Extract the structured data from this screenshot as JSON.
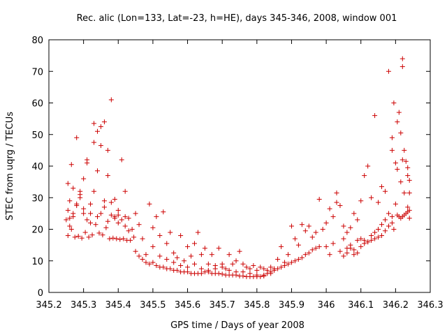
{
  "chart_data": {
    "type": "scatter",
    "title": "Rec. alic (Lon=133, Lat=-23, h=HE), days 345-346, 2008, window 001",
    "xlabel": "GPS time / Days of year 2008",
    "ylabel": "STEC from uqrg / TECUs",
    "xlim": [
      345.2,
      346.3
    ],
    "ylim": [
      0,
      80
    ],
    "xticks": [
      345.2,
      345.3,
      345.4,
      345.5,
      345.6,
      345.7,
      345.8,
      345.9,
      346.0,
      346.1,
      346.2,
      346.3
    ],
    "xtick_labels": [
      "345.2",
      "345.3",
      "345.4",
      "345.5",
      "345.6",
      "345.7",
      "345.8",
      "345.9",
      "346",
      "346.1",
      "346.2",
      "346.3"
    ],
    "yticks": [
      0,
      10,
      20,
      30,
      40,
      50,
      60,
      70,
      80
    ],
    "ytick_labels": [
      "0",
      "10",
      "20",
      "30",
      "40",
      "50",
      "60",
      "70",
      "80"
    ],
    "grid": false,
    "marker": "+",
    "color": "#cc0000",
    "points": [
      [
        345.255,
        34.5
      ],
      [
        345.26,
        29.0
      ],
      [
        345.265,
        40.5
      ],
      [
        345.27,
        25.0
      ],
      [
        345.28,
        49.0
      ],
      [
        345.29,
        32.0
      ],
      [
        345.3,
        36.0
      ],
      [
        345.31,
        42.0
      ],
      [
        345.32,
        28.0
      ],
      [
        345.33,
        53.5
      ],
      [
        345.34,
        38.5
      ],
      [
        345.35,
        46.5
      ],
      [
        345.36,
        54.0
      ],
      [
        345.37,
        45.0
      ],
      [
        345.38,
        61.0
      ],
      [
        345.39,
        29.5
      ],
      [
        345.4,
        26.0
      ],
      [
        345.41,
        42.0
      ],
      [
        345.42,
        32.0
      ],
      [
        345.43,
        23.5
      ],
      [
        345.255,
        26.0
      ],
      [
        345.26,
        23.5
      ],
      [
        345.27,
        33.0
      ],
      [
        345.28,
        27.5
      ],
      [
        345.29,
        31.0
      ],
      [
        345.3,
        26.5
      ],
      [
        345.31,
        41.0
      ],
      [
        345.32,
        25.0
      ],
      [
        345.33,
        47.5
      ],
      [
        345.34,
        51.0
      ],
      [
        345.35,
        52.5
      ],
      [
        345.36,
        29.0
      ],
      [
        345.37,
        37.0
      ],
      [
        345.38,
        28.5
      ],
      [
        345.39,
        24.0
      ],
      [
        345.4,
        24.5
      ],
      [
        345.41,
        23.0
      ],
      [
        345.42,
        21.0
      ],
      [
        345.43,
        19.5
      ],
      [
        345.25,
        23.0
      ],
      [
        345.26,
        21.0
      ],
      [
        345.27,
        24.0
      ],
      [
        345.28,
        28.0
      ],
      [
        345.29,
        30.0
      ],
      [
        345.3,
        25.0
      ],
      [
        345.31,
        23.0
      ],
      [
        345.32,
        22.0
      ],
      [
        345.33,
        32.0
      ],
      [
        345.34,
        24.0
      ],
      [
        345.35,
        25.0
      ],
      [
        345.36,
        27.0
      ],
      [
        345.37,
        22.5
      ],
      [
        345.38,
        24.5
      ],
      [
        345.39,
        23.5
      ],
      [
        345.4,
        22.0
      ],
      [
        345.42,
        24.0
      ],
      [
        345.44,
        20.0
      ],
      [
        345.46,
        21.5
      ],
      [
        345.255,
        18.0
      ],
      [
        345.265,
        20.0
      ],
      [
        345.275,
        17.5
      ],
      [
        345.285,
        17.8
      ],
      [
        345.295,
        17.2
      ],
      [
        345.305,
        19.0
      ],
      [
        345.315,
        17.5
      ],
      [
        345.325,
        18.2
      ],
      [
        345.335,
        21.5
      ],
      [
        345.345,
        18.8
      ],
      [
        345.355,
        18.2
      ],
      [
        345.365,
        20.5
      ],
      [
        345.375,
        17.0
      ],
      [
        345.385,
        17.2
      ],
      [
        345.395,
        17.0
      ],
      [
        345.405,
        16.8
      ],
      [
        345.415,
        17.0
      ],
      [
        345.425,
        16.5
      ],
      [
        345.435,
        16.5
      ],
      [
        345.445,
        17.5
      ],
      [
        345.45,
        13.0
      ],
      [
        345.46,
        11.5
      ],
      [
        345.47,
        10.5
      ],
      [
        345.48,
        9.5
      ],
      [
        345.49,
        9.0
      ],
      [
        345.5,
        9.5
      ],
      [
        345.51,
        8.5
      ],
      [
        345.52,
        8.0
      ],
      [
        345.53,
        8.0
      ],
      [
        345.54,
        7.5
      ],
      [
        345.55,
        7.5
      ],
      [
        345.56,
        7.0
      ],
      [
        345.57,
        7.0
      ],
      [
        345.58,
        6.5
      ],
      [
        345.59,
        6.5
      ],
      [
        345.6,
        6.5
      ],
      [
        345.61,
        6.0
      ],
      [
        345.62,
        6.0
      ],
      [
        345.63,
        6.0
      ],
      [
        345.64,
        6.0
      ],
      [
        345.45,
        25.0
      ],
      [
        345.47,
        17.0
      ],
      [
        345.49,
        28.0
      ],
      [
        345.5,
        14.5
      ],
      [
        345.51,
        24.0
      ],
      [
        345.52,
        18.0
      ],
      [
        345.53,
        25.5
      ],
      [
        345.54,
        15.5
      ],
      [
        345.55,
        19.0
      ],
      [
        345.56,
        12.5
      ],
      [
        345.57,
        11.0
      ],
      [
        345.58,
        18.0
      ],
      [
        345.59,
        10.0
      ],
      [
        345.6,
        14.5
      ],
      [
        345.61,
        11.5
      ],
      [
        345.62,
        15.5
      ],
      [
        345.63,
        19.0
      ],
      [
        345.64,
        12.0
      ],
      [
        345.65,
        14.0
      ],
      [
        345.66,
        9.0
      ],
      [
        345.48,
        12.0
      ],
      [
        345.5,
        20.5
      ],
      [
        345.52,
        11.5
      ],
      [
        345.54,
        10.5
      ],
      [
        345.56,
        9.5
      ],
      [
        345.58,
        8.5
      ],
      [
        345.6,
        8.0
      ],
      [
        345.62,
        9.0
      ],
      [
        345.64,
        7.5
      ],
      [
        345.66,
        7.0
      ],
      [
        345.68,
        7.5
      ],
      [
        345.7,
        8.0
      ],
      [
        345.72,
        7.0
      ],
      [
        345.74,
        6.5
      ],
      [
        345.76,
        6.5
      ],
      [
        345.78,
        6.0
      ],
      [
        345.8,
        5.5
      ],
      [
        345.82,
        5.5
      ],
      [
        345.84,
        6.0
      ],
      [
        345.65,
        6.5
      ],
      [
        345.66,
        6.5
      ],
      [
        345.67,
        6.0
      ],
      [
        345.68,
        6.0
      ],
      [
        345.69,
        6.0
      ],
      [
        345.7,
        5.8
      ],
      [
        345.71,
        5.5
      ],
      [
        345.72,
        5.5
      ],
      [
        345.73,
        5.5
      ],
      [
        345.74,
        5.5
      ],
      [
        345.75,
        5.2
      ],
      [
        345.76,
        5.2
      ],
      [
        345.77,
        5.0
      ],
      [
        345.78,
        5.0
      ],
      [
        345.79,
        5.0
      ],
      [
        345.8,
        5.0
      ],
      [
        345.81,
        5.0
      ],
      [
        345.82,
        5.2
      ],
      [
        345.67,
        12.0
      ],
      [
        345.68,
        8.5
      ],
      [
        345.69,
        14.0
      ],
      [
        345.7,
        9.0
      ],
      [
        345.71,
        7.5
      ],
      [
        345.72,
        12.0
      ],
      [
        345.73,
        9.0
      ],
      [
        345.74,
        10.0
      ],
      [
        345.75,
        13.0
      ],
      [
        345.76,
        9.0
      ],
      [
        345.77,
        8.0
      ],
      [
        345.78,
        7.5
      ],
      [
        345.79,
        8.5
      ],
      [
        345.8,
        7.0
      ],
      [
        345.81,
        8.0
      ],
      [
        345.82,
        7.5
      ],
      [
        345.83,
        7.0
      ],
      [
        345.84,
        8.0
      ],
      [
        345.85,
        7.5
      ],
      [
        345.83,
        6.0
      ],
      [
        345.84,
        6.5
      ],
      [
        345.85,
        7.0
      ],
      [
        345.86,
        7.5
      ],
      [
        345.87,
        8.0
      ],
      [
        345.88,
        8.5
      ],
      [
        345.89,
        9.0
      ],
      [
        345.9,
        9.5
      ],
      [
        345.91,
        10.0
      ],
      [
        345.92,
        10.5
      ],
      [
        345.93,
        11.0
      ],
      [
        345.94,
        12.0
      ],
      [
        345.95,
        12.5
      ],
      [
        345.96,
        13.5
      ],
      [
        345.97,
        14.0
      ],
      [
        345.98,
        14.5
      ],
      [
        345.86,
        10.5
      ],
      [
        345.87,
        14.5
      ],
      [
        345.88,
        9.5
      ],
      [
        345.89,
        12.0
      ],
      [
        345.9,
        21.0
      ],
      [
        345.91,
        17.0
      ],
      [
        345.92,
        15.0
      ],
      [
        345.93,
        21.5
      ],
      [
        345.94,
        19.5
      ],
      [
        345.95,
        21.0
      ],
      [
        345.96,
        17.5
      ],
      [
        345.97,
        19.0
      ],
      [
        345.98,
        29.5
      ],
      [
        345.99,
        20.0
      ],
      [
        346.0,
        14.5
      ],
      [
        346.01,
        12.0
      ],
      [
        346.02,
        15.5
      ],
      [
        346.03,
        31.5
      ],
      [
        346.04,
        13.0
      ],
      [
        346.05,
        11.5
      ],
      [
        346.06,
        12.5
      ],
      [
        346.07,
        14.0
      ],
      [
        346.08,
        12.0
      ],
      [
        346.09,
        12.5
      ],
      [
        346.1,
        14.5
      ],
      [
        346.11,
        15.5
      ],
      [
        346.12,
        16.0
      ],
      [
        346.13,
        16.5
      ],
      [
        346.14,
        17.0
      ],
      [
        346.15,
        17.5
      ],
      [
        346.16,
        18.0
      ],
      [
        346.17,
        19.5
      ],
      [
        346.18,
        21.0
      ],
      [
        346.19,
        22.0
      ],
      [
        346.0,
        22.0
      ],
      [
        346.01,
        26.5
      ],
      [
        346.02,
        24.0
      ],
      [
        346.03,
        28.5
      ],
      [
        346.04,
        27.5
      ],
      [
        346.05,
        21.0
      ],
      [
        346.06,
        19.0
      ],
      [
        346.07,
        20.5
      ],
      [
        346.08,
        25.0
      ],
      [
        346.09,
        23.0
      ],
      [
        346.1,
        29.0
      ],
      [
        346.11,
        37.0
      ],
      [
        346.12,
        40.0
      ],
      [
        346.13,
        30.0
      ],
      [
        346.14,
        56.0
      ],
      [
        346.15,
        28.5
      ],
      [
        346.16,
        33.5
      ],
      [
        346.17,
        32.0
      ],
      [
        346.18,
        70.0
      ],
      [
        346.19,
        49.0
      ],
      [
        346.05,
        17.0
      ],
      [
        346.06,
        14.0
      ],
      [
        346.07,
        15.0
      ],
      [
        346.08,
        13.5
      ],
      [
        346.09,
        16.5
      ],
      [
        346.1,
        17.0
      ],
      [
        346.11,
        16.5
      ],
      [
        346.12,
        16.0
      ],
      [
        346.13,
        18.0
      ],
      [
        346.14,
        19.0
      ],
      [
        346.15,
        20.0
      ],
      [
        346.16,
        21.5
      ],
      [
        346.17,
        23.0
      ],
      [
        346.18,
        25.0
      ],
      [
        346.19,
        24.0
      ],
      [
        346.19,
        45.0
      ],
      [
        346.2,
        41.0
      ],
      [
        346.205,
        54.0
      ],
      [
        346.21,
        57.0
      ],
      [
        346.215,
        50.5
      ],
      [
        346.22,
        42.0
      ],
      [
        346.225,
        45.0
      ],
      [
        346.23,
        41.5
      ],
      [
        346.235,
        37.0
      ],
      [
        346.24,
        31.5
      ],
      [
        346.195,
        60.0
      ],
      [
        346.22,
        74.0
      ],
      [
        346.22,
        71.5
      ],
      [
        346.235,
        39.5
      ],
      [
        346.24,
        35.5
      ],
      [
        346.2,
        28.0
      ],
      [
        346.205,
        24.5
      ],
      [
        346.21,
        24.0
      ],
      [
        346.215,
        23.5
      ],
      [
        346.22,
        24.0
      ],
      [
        346.225,
        24.5
      ],
      [
        346.23,
        25.0
      ],
      [
        346.235,
        25.5
      ],
      [
        346.24,
        26.0
      ],
      [
        346.24,
        23.5
      ],
      [
        346.235,
        27.0
      ],
      [
        346.225,
        31.5
      ],
      [
        346.215,
        35.0
      ],
      [
        346.205,
        39.0
      ],
      [
        346.195,
        20.0
      ]
    ]
  }
}
